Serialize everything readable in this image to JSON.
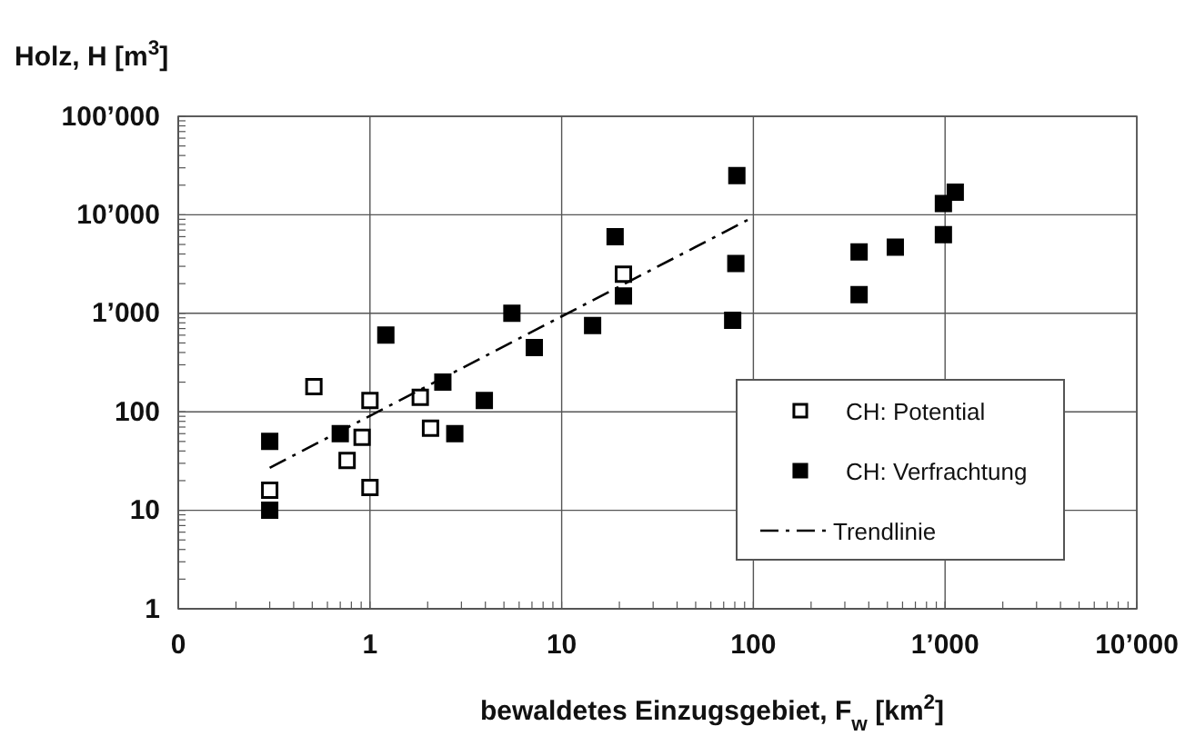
{
  "chart_data": {
    "type": "scatter",
    "xlabel": "bewaldetes Einzugsgebiet, F$_{w}$ [km$^{2}$]",
    "ylabel": "Holz, H [m$^{3}$]",
    "log": "xy",
    "grid": true,
    "legend": "bottom right",
    "marker": "square",
    "xlim": [
      0.1,
      10000
    ],
    "xticks": [
      {
        "value": 0.1,
        "label": "0"
      },
      1,
      10,
      100,
      {
        "value": 1000,
        "label": "1’000"
      },
      {
        "value": 10000,
        "label": "10’000"
      }
    ],
    "ylim": [
      1,
      100000
    ],
    "yticks": [
      1,
      10,
      100,
      {
        "value": 1000,
        "label": "1’000"
      },
      {
        "value": 10000,
        "label": "10’000"
      },
      {
        "value": 100000,
        "label": "100’000"
      }
    ],
    "series": [
      {
        "name": "CH: Potential",
        "color": "#ffffff",
        "x": [
          0.3,
          0.51,
          0.76,
          0.91,
          1.0,
          1.0,
          1.83,
          2.07,
          21
        ],
        "values": [
          16,
          180,
          32,
          55,
          17,
          130,
          140,
          68,
          2500
        ]
      },
      {
        "name": "CH: Verfrachtung",
        "color": "#000000",
        "x": [
          0.3,
          0.3,
          0.7,
          1.21,
          2.4,
          2.77,
          3.95,
          5.5,
          7.2,
          14.5,
          19,
          21,
          82,
          81,
          78,
          356,
          356,
          550,
          980,
          980,
          1130
        ],
        "values": [
          50,
          10,
          60,
          600,
          200,
          60,
          130,
          1000,
          450,
          750,
          6000,
          1500,
          25000,
          3200,
          850,
          4200,
          1550,
          4700,
          13000,
          6300,
          17000
        ]
      },
      {
        "name": "Trendlinie",
        "type": "line",
        "marker": "none",
        "line_style": "dashed",
        "color": "#000000",
        "x": [
          0.3,
          100
        ],
        "values": [
          27,
          9500
        ]
      }
    ]
  }
}
